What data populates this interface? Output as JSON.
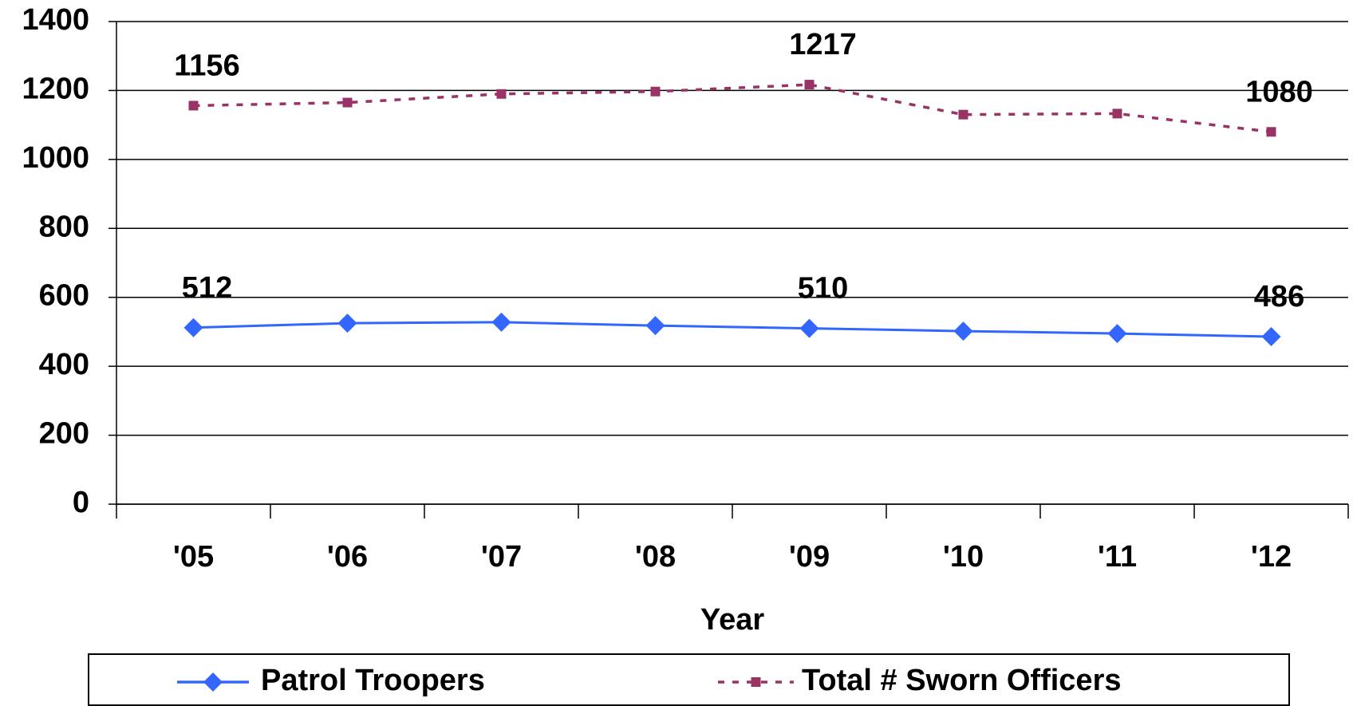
{
  "chart_data": {
    "type": "line",
    "x_label": "Year",
    "categories": [
      "'05",
      "'06",
      "'07",
      "'08",
      "'09",
      "'10",
      "'11",
      "'12"
    ],
    "series": [
      {
        "name": "Patrol Troopers",
        "color": "#3366ff",
        "values": [
          512,
          525,
          528,
          518,
          510,
          502,
          495,
          486
        ]
      },
      {
        "name": "Total # Sworn Officers",
        "color": "#993366",
        "values": [
          1156,
          1165,
          1190,
          1197,
          1217,
          1130,
          1133,
          1080
        ]
      }
    ],
    "ylim": [
      0,
      1400
    ],
    "yticks": [
      0,
      200,
      400,
      600,
      800,
      1000,
      1200,
      1400
    ],
    "grid": true,
    "legend": "bottom"
  }
}
